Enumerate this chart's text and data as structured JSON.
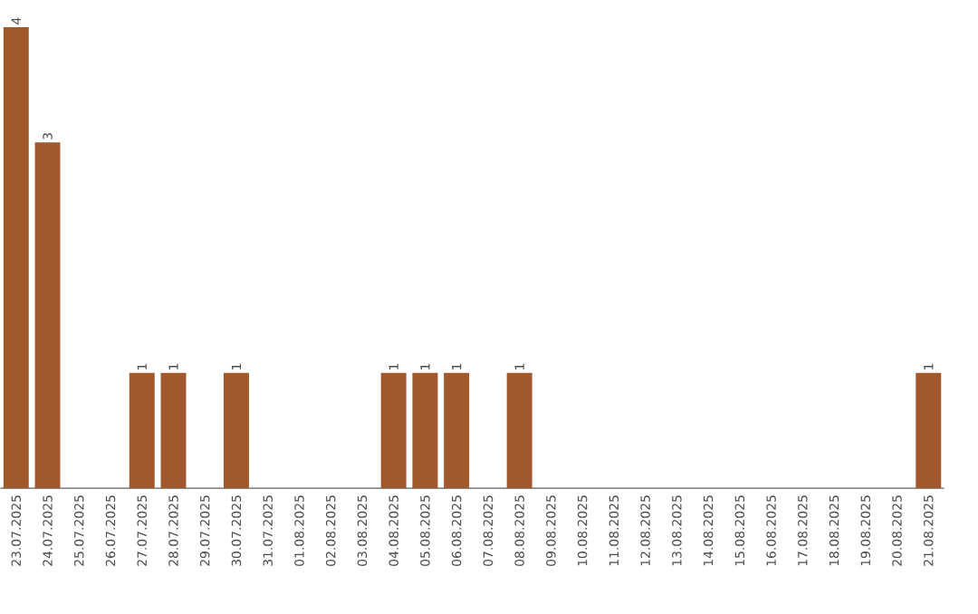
{
  "chart_data": {
    "type": "bar",
    "categories": [
      "23.07.2025",
      "24.07.2025",
      "25.07.2025",
      "26.07.2025",
      "27.07.2025",
      "28.07.2025",
      "29.07.2025",
      "30.07.2025",
      "31.07.2025",
      "01.08.2025",
      "02.08.2025",
      "03.08.2025",
      "04.08.2025",
      "05.08.2025",
      "06.08.2025",
      "07.08.2025",
      "08.08.2025",
      "09.08.2025",
      "10.08.2025",
      "11.08.2025",
      "12.08.2025",
      "13.08.2025",
      "14.08.2025",
      "15.08.2025",
      "16.08.2025",
      "17.08.2025",
      "18.08.2025",
      "19.08.2025",
      "20.08.2025",
      "21.08.2025"
    ],
    "values": [
      4,
      3,
      0,
      0,
      1,
      1,
      0,
      1,
      0,
      0,
      0,
      0,
      1,
      1,
      1,
      0,
      1,
      0,
      0,
      0,
      0,
      0,
      0,
      0,
      0,
      0,
      0,
      0,
      0,
      1
    ],
    "value_labels": [
      "4",
      "3",
      null,
      null,
      "1",
      "1",
      null,
      "1",
      null,
      null,
      null,
      null,
      "1",
      "1",
      "1",
      null,
      "1",
      null,
      null,
      null,
      null,
      null,
      null,
      null,
      null,
      null,
      null,
      null,
      null,
      "1"
    ],
    "color": "#a0582c"
  }
}
